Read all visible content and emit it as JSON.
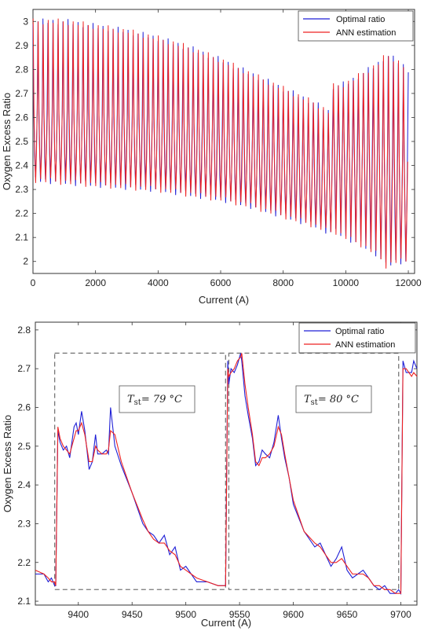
{
  "chart_data": [
    {
      "type": "line",
      "xlabel": "Current (A)",
      "ylabel": "Oxygen Excess Ratio",
      "xlim": [
        0,
        12200
      ],
      "ylim": [
        1.95,
        3.05
      ],
      "xticks": [
        0,
        2000,
        4000,
        6000,
        8000,
        10000,
        12000
      ],
      "yticks": [
        2,
        2.1,
        2.2,
        2.3,
        2.4,
        2.5,
        2.6,
        2.7,
        2.8,
        2.9,
        3
      ],
      "xtick_labels": [
        "0",
        "2000",
        "4000",
        "6000",
        "8000",
        "10000",
        "12000"
      ],
      "ytick_labels": [
        "2",
        "2.1",
        "2.2",
        "2.3",
        "2.4",
        "2.5",
        "2.6",
        "2.7",
        "2.8",
        "2.9",
        "3"
      ],
      "legend": {
        "placement": "top-right",
        "entries": [
          "Optimal ratio",
          "ANN estimation"
        ]
      },
      "series": [
        {
          "name": "Optimal ratio",
          "color": "#1f1fd6"
        },
        {
          "name": "ANN estimation",
          "color": "#ee2222"
        }
      ],
      "envelope": {
        "x": [
          0,
          1000,
          2000,
          3000,
          4000,
          5000,
          6000,
          7000,
          8000,
          9000,
          9500,
          9600,
          10000,
          10500,
          11000,
          11300,
          11600,
          12000
        ],
        "upper": [
          3.0,
          3.0,
          2.98,
          2.96,
          2.93,
          2.89,
          2.84,
          2.78,
          2.72,
          2.66,
          2.62,
          2.73,
          2.74,
          2.78,
          2.82,
          2.86,
          2.84,
          2.8
        ],
        "lower": [
          2.34,
          2.33,
          2.32,
          2.31,
          2.3,
          2.28,
          2.26,
          2.23,
          2.19,
          2.15,
          2.12,
          2.13,
          2.1,
          2.07,
          2.03,
          1.98,
          2.0,
          2.0
        ],
        "upper_plateau": [
          2.63,
          2.63,
          2.62,
          2.61,
          2.6,
          2.58,
          2.56,
          2.52,
          2.48,
          2.44,
          2.41,
          2.52,
          2.5,
          2.5,
          2.5,
          2.48,
          2.45,
          2.42
        ],
        "lower_plateau": [
          2.45,
          2.44,
          2.43,
          2.43,
          2.41,
          2.39,
          2.37,
          2.34,
          2.3,
          2.26,
          2.23,
          2.33,
          2.31,
          2.29,
          2.26,
          2.22,
          2.2,
          2.18
        ]
      },
      "oscillation_period": 160
    },
    {
      "type": "line",
      "xlabel": "Current (A)",
      "ylabel": "Oxygen Excess Ratio",
      "xlim": [
        9360,
        9715
      ],
      "ylim": [
        2.09,
        2.82
      ],
      "xticks": [
        9400,
        9450,
        9500,
        9550,
        9600,
        9650,
        9700
      ],
      "yticks": [
        2.1,
        2.2,
        2.3,
        2.4,
        2.5,
        2.6,
        2.7,
        2.8
      ],
      "xtick_labels": [
        "9400",
        "9450",
        "9500",
        "9550",
        "9600",
        "9650",
        "9700"
      ],
      "ytick_labels": [
        "2.1",
        "2.2",
        "2.3",
        "2.4",
        "2.5",
        "2.6",
        "2.7",
        "2.8"
      ],
      "legend": {
        "placement": "top-right",
        "entries": [
          "Optimal ratio",
          "ANN estimation"
        ]
      },
      "series": [
        {
          "name": "Optimal ratio",
          "color": "#1f1fd6",
          "x": [
            9360,
            9368,
            9372,
            9375,
            9378,
            9379,
            9381,
            9383,
            9386,
            9389,
            9392,
            9396,
            9398,
            9400,
            9403,
            9406,
            9410,
            9413,
            9416,
            9418,
            9422,
            9426,
            9428,
            9430,
            9434,
            9440,
            9450,
            9460,
            9465,
            9470,
            9475,
            9480,
            9485,
            9490,
            9495,
            9500,
            9505,
            9510,
            9520,
            9530,
            9537,
            9539,
            9540,
            9542,
            9545,
            9548,
            9551,
            9552,
            9555,
            9558,
            9562,
            9565,
            9568,
            9571,
            9574,
            9578,
            9582,
            9586,
            9589,
            9592,
            9596,
            9600,
            9610,
            9620,
            9625,
            9630,
            9635,
            9640,
            9645,
            9650,
            9655,
            9660,
            9665,
            9670,
            9675,
            9680,
            9685,
            9690,
            9695,
            9698,
            9700,
            9702,
            9705,
            9710,
            9712,
            9715
          ],
          "y": [
            2.17,
            2.17,
            2.15,
            2.16,
            2.14,
            2.14,
            2.54,
            2.51,
            2.49,
            2.5,
            2.47,
            2.55,
            2.56,
            2.53,
            2.59,
            2.54,
            2.44,
            2.46,
            2.53,
            2.48,
            2.48,
            2.49,
            2.48,
            2.6,
            2.5,
            2.45,
            2.38,
            2.3,
            2.28,
            2.27,
            2.25,
            2.27,
            2.22,
            2.24,
            2.18,
            2.19,
            2.17,
            2.15,
            2.15,
            2.14,
            2.14,
            2.72,
            2.66,
            2.7,
            2.69,
            2.71,
            2.74,
            2.72,
            2.63,
            2.58,
            2.52,
            2.45,
            2.46,
            2.49,
            2.48,
            2.47,
            2.51,
            2.58,
            2.52,
            2.47,
            2.42,
            2.35,
            2.28,
            2.24,
            2.25,
            2.22,
            2.19,
            2.21,
            2.24,
            2.18,
            2.16,
            2.17,
            2.18,
            2.16,
            2.14,
            2.13,
            2.14,
            2.12,
            2.12,
            2.13,
            2.12,
            2.72,
            2.69,
            2.69,
            2.72,
            2.7
          ]
        },
        {
          "name": "ANN estimation",
          "color": "#ee2222",
          "x": [
            9360,
            9368,
            9372,
            9375,
            9378,
            9379,
            9381,
            9383,
            9386,
            9389,
            9392,
            9396,
            9398,
            9400,
            9403,
            9406,
            9410,
            9413,
            9416,
            9418,
            9422,
            9426,
            9428,
            9430,
            9434,
            9440,
            9450,
            9460,
            9465,
            9470,
            9475,
            9480,
            9485,
            9490,
            9495,
            9500,
            9505,
            9510,
            9520,
            9530,
            9537,
            9539,
            9540,
            9542,
            9545,
            9548,
            9551,
            9552,
            9555,
            9558,
            9562,
            9565,
            9568,
            9571,
            9574,
            9578,
            9582,
            9586,
            9589,
            9592,
            9596,
            9600,
            9610,
            9620,
            9625,
            9630,
            9635,
            9640,
            9645,
            9650,
            9655,
            9660,
            9665,
            9670,
            9675,
            9680,
            9685,
            9690,
            9695,
            9698,
            9700,
            9702,
            9705,
            9710,
            9712,
            9715
          ],
          "y": [
            2.18,
            2.17,
            2.16,
            2.15,
            2.15,
            2.14,
            2.55,
            2.52,
            2.5,
            2.49,
            2.48,
            2.52,
            2.54,
            2.54,
            2.56,
            2.53,
            2.46,
            2.46,
            2.5,
            2.49,
            2.48,
            2.48,
            2.49,
            2.54,
            2.53,
            2.46,
            2.38,
            2.31,
            2.28,
            2.26,
            2.25,
            2.25,
            2.23,
            2.22,
            2.19,
            2.18,
            2.17,
            2.16,
            2.15,
            2.14,
            2.14,
            2.7,
            2.68,
            2.69,
            2.7,
            2.72,
            2.73,
            2.74,
            2.66,
            2.6,
            2.53,
            2.46,
            2.45,
            2.47,
            2.47,
            2.48,
            2.5,
            2.55,
            2.53,
            2.48,
            2.42,
            2.36,
            2.28,
            2.25,
            2.24,
            2.22,
            2.2,
            2.2,
            2.21,
            2.19,
            2.17,
            2.17,
            2.17,
            2.16,
            2.14,
            2.14,
            2.13,
            2.13,
            2.12,
            2.12,
            2.12,
            2.7,
            2.7,
            2.68,
            2.69,
            2.68
          ]
        }
      ],
      "annotations": [
        {
          "prefix": "T",
          "subscript": "st",
          "text": "= 79 °C"
        },
        {
          "prefix": "T",
          "subscript": "st",
          "text": "= 80 °C"
        }
      ],
      "boxes": [
        {
          "x": [
            9378,
            9537
          ],
          "y": [
            2.13,
            2.74
          ]
        },
        {
          "x": [
            9540,
            9698
          ],
          "y": [
            2.13,
            2.74
          ]
        }
      ]
    }
  ]
}
